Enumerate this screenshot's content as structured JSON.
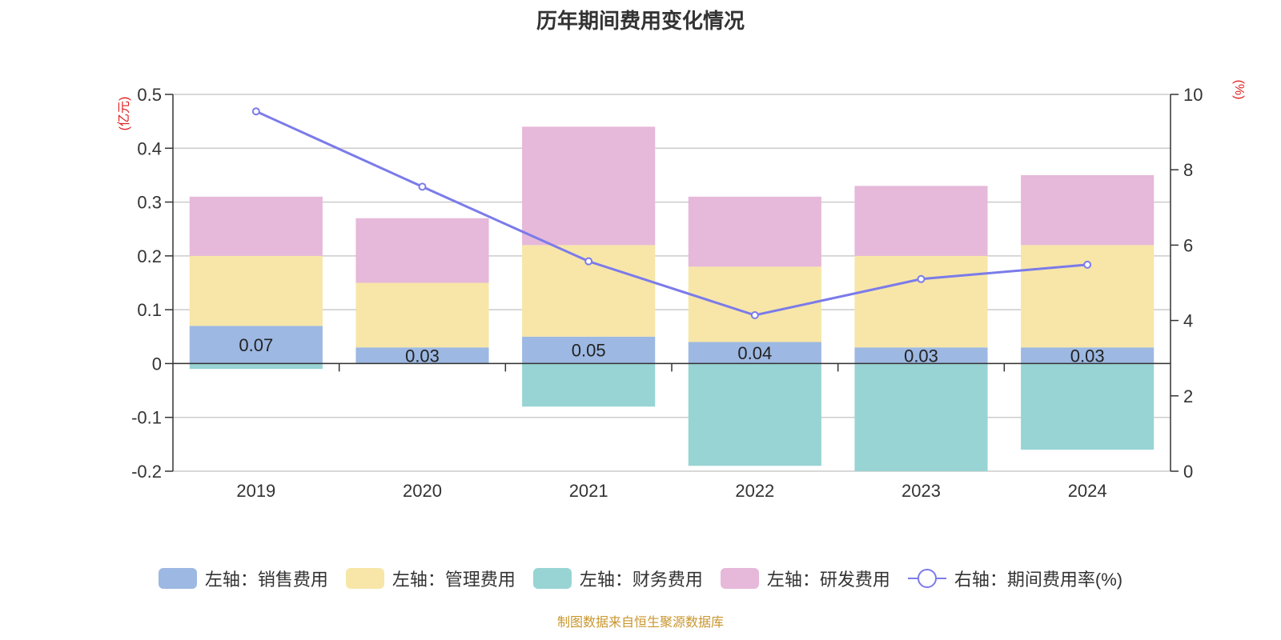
{
  "title": "历年期间费用变化情况",
  "source": "制图数据来自恒生聚源数据库",
  "left_axis_unit": "(亿元)",
  "right_axis_unit": "(%)",
  "colors": {
    "sales": "#9db8e2",
    "admin": "#f7e6a8",
    "finance": "#98d4d4",
    "rd": "#e6b8d9",
    "rate": "#7b7bea",
    "unit": "#e02020"
  },
  "legend": [
    {
      "label": "左轴：销售费用",
      "color": "#9db8e2",
      "kind": "bar"
    },
    {
      "label": "左轴：管理费用",
      "color": "#f7e6a8",
      "kind": "bar"
    },
    {
      "label": "左轴：财务费用",
      "color": "#98d4d4",
      "kind": "bar"
    },
    {
      "label": "左轴：研发费用",
      "color": "#e6b8d9",
      "kind": "bar"
    },
    {
      "label": "右轴：期间费用率(%)",
      "color": "#7b7bea",
      "kind": "line"
    }
  ],
  "chart_data": {
    "type": "bar",
    "stacked": true,
    "categories": [
      "2019",
      "2020",
      "2021",
      "2022",
      "2023",
      "2024"
    ],
    "series": [
      {
        "name": "左轴：销售费用",
        "axis": "left",
        "values": [
          0.07,
          0.03,
          0.05,
          0.04,
          0.03,
          0.03
        ],
        "data_labels": [
          "0.07",
          "0.03",
          "0.05",
          "0.04",
          "0.03",
          "0.03"
        ]
      },
      {
        "name": "左轴：管理费用",
        "axis": "left",
        "values": [
          0.13,
          0.12,
          0.17,
          0.14,
          0.17,
          0.19
        ]
      },
      {
        "name": "左轴：财务费用",
        "axis": "left",
        "values": [
          -0.01,
          0.0,
          -0.08,
          -0.19,
          -0.2,
          -0.16
        ]
      },
      {
        "name": "左轴：研发费用",
        "axis": "left",
        "values": [
          0.11,
          0.12,
          0.22,
          0.13,
          0.13,
          0.13
        ]
      },
      {
        "name": "右轴：期间费用率(%)",
        "axis": "right",
        "type": "line",
        "values": [
          9.55,
          7.55,
          5.57,
          4.14,
          5.1,
          5.48
        ]
      }
    ],
    "y_left": {
      "min": -0.2,
      "max": 0.5,
      "ticks": [
        "-0.2",
        "-0.1",
        "0",
        "0.1",
        "0.2",
        "0.3",
        "0.4",
        "0.5"
      ]
    },
    "y_right": {
      "min": 0,
      "max": 10,
      "ticks": [
        "0",
        "2",
        "4",
        "6",
        "8",
        "10"
      ]
    },
    "grid": true,
    "legend_position": "bottom"
  }
}
